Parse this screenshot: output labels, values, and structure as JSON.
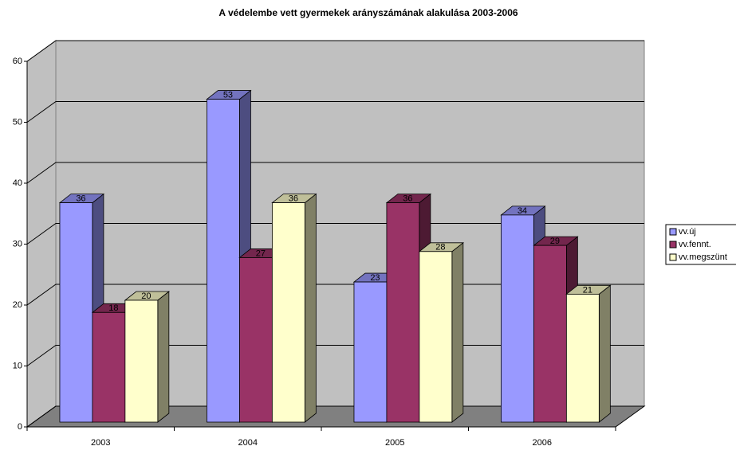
{
  "chart_data": {
    "type": "bar3d",
    "title": "A védelembe vett gyermekek arányszámának alakulása 2003-2006",
    "categories": [
      "2003",
      "2004",
      "2005",
      "2006"
    ],
    "series": [
      {
        "name": "vv.új",
        "color": "#9999ff",
        "values": [
          36,
          53,
          23,
          34
        ]
      },
      {
        "name": "vv.fennt.",
        "color": "#993366",
        "values": [
          18,
          27,
          36,
          29
        ]
      },
      {
        "name": "vv.megszünt",
        "color": "#ffffcc",
        "values": [
          20,
          36,
          28,
          21
        ]
      }
    ],
    "ylim": [
      0,
      60
    ],
    "yticks": [
      0,
      10,
      20,
      30,
      40,
      50,
      60
    ],
    "grid": true,
    "legend": "right",
    "data_labels": true
  }
}
